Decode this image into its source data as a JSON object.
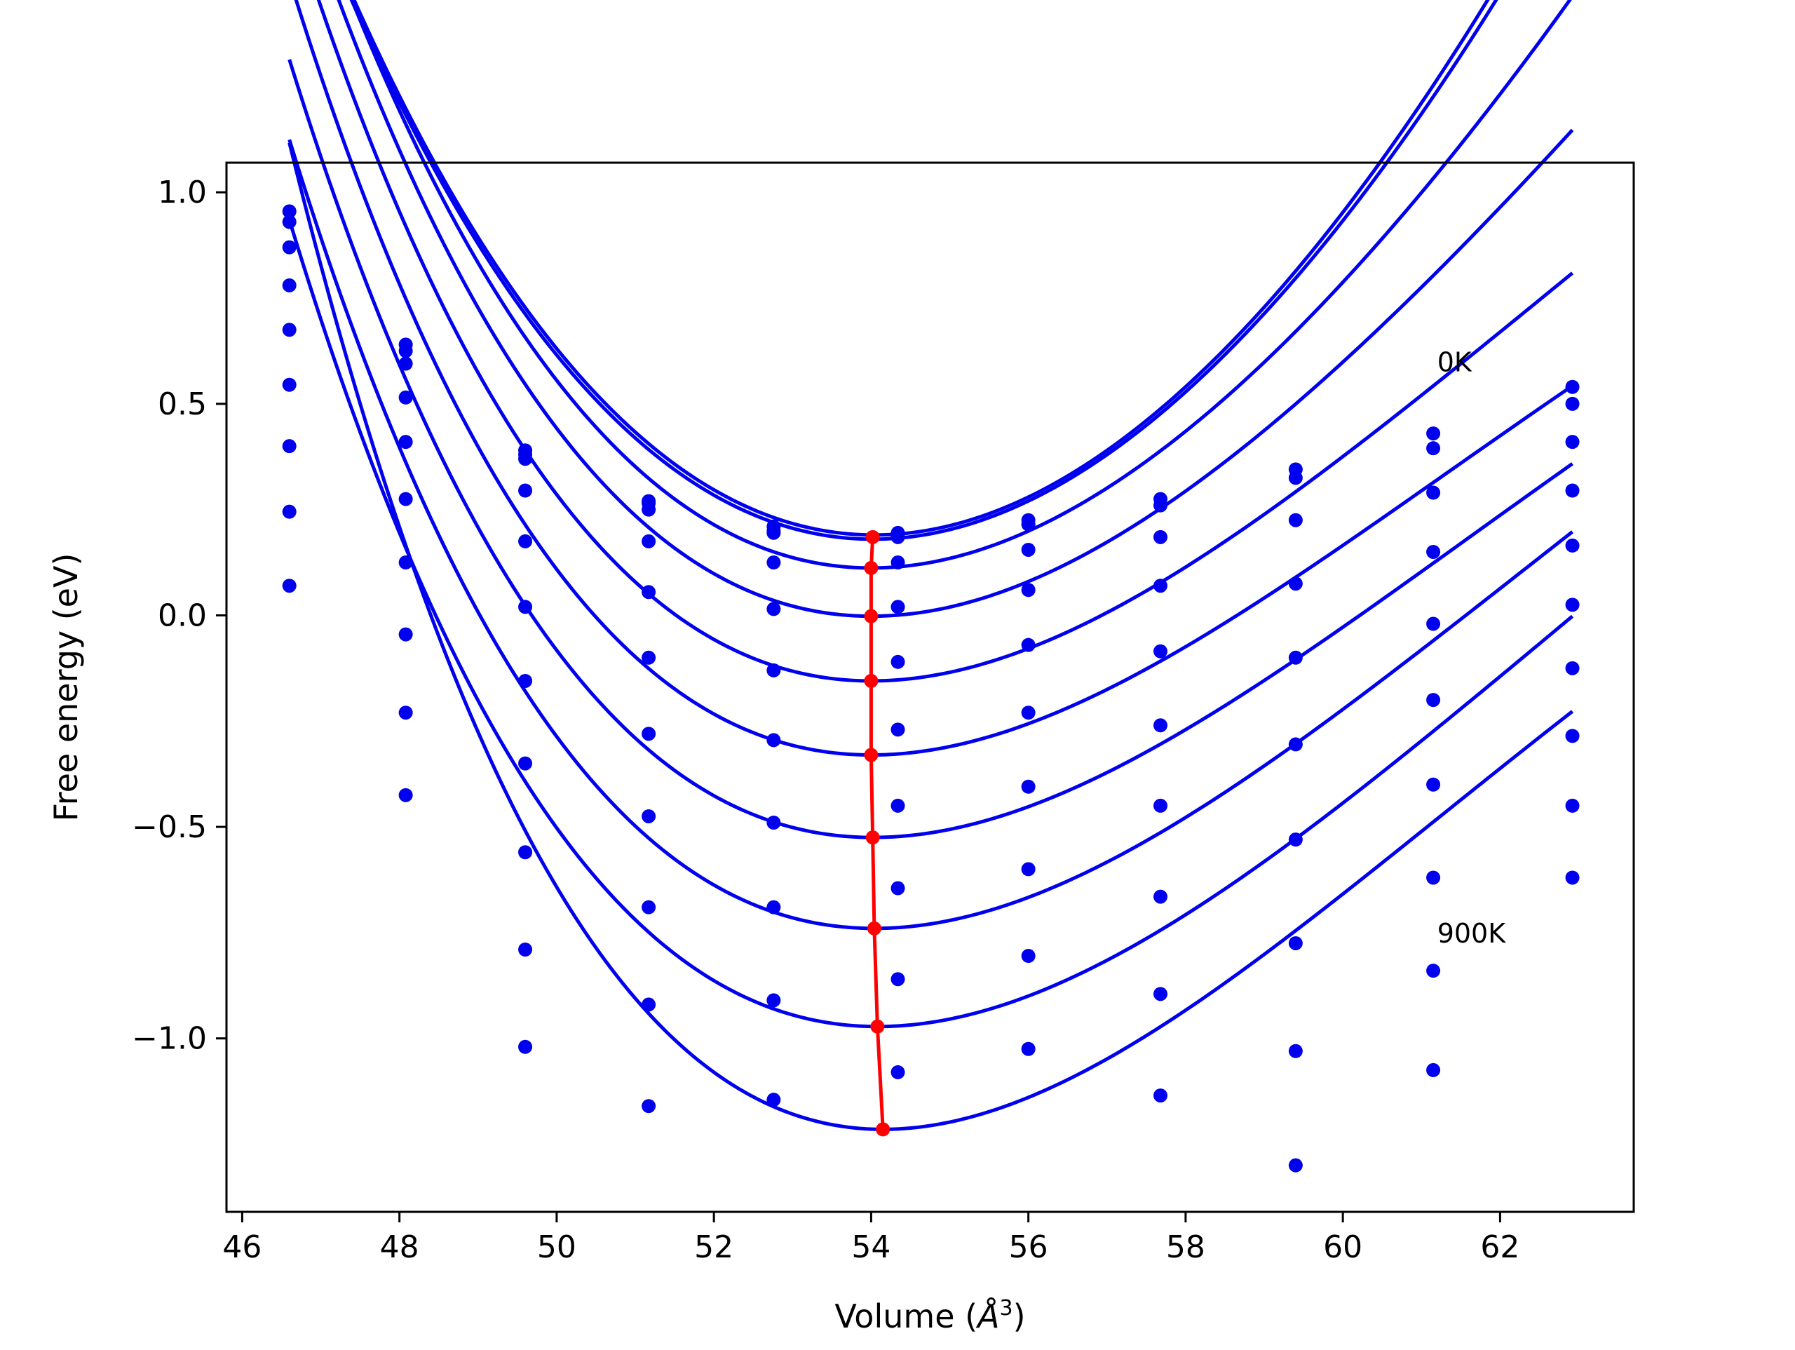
{
  "chart_data": {
    "type": "line",
    "title": "",
    "xlabel": "Volume (",
    "xlabel_symbol": "Å",
    "xlabel_sup": "3",
    "xlabel_close": ")",
    "ylabel": "Free energy (eV)",
    "xlim": [
      45.8,
      63.7
    ],
    "ylim": [
      -1.41,
      1.07
    ],
    "xticks": [
      46,
      48,
      50,
      52,
      54,
      56,
      58,
      60,
      62
    ],
    "xtick_labels": [
      "46",
      "48",
      "50",
      "52",
      "54",
      "56",
      "58",
      "60",
      "62"
    ],
    "yticks": [
      1.0,
      0.5,
      0.0,
      -0.5,
      -1.0
    ],
    "ytick_labels": [
      "1.0",
      "0.5",
      "0.0",
      "−0.5",
      "−1.0"
    ],
    "grid": false,
    "legend": "none",
    "colors": {
      "curves": "#0000ee",
      "points": "#0000ee",
      "minimum_line": "#ff0000",
      "frame": "#000000"
    },
    "annotations": [
      {
        "text": "0K",
        "x": 61.2,
        "y": 0.6
      },
      {
        "text": "900K",
        "x": 61.2,
        "y": -0.75
      }
    ],
    "volumes": [
      46.6,
      48.08,
      49.6,
      51.17,
      52.76,
      54.34,
      56.0,
      57.68,
      59.4,
      61.15,
      62.92
    ],
    "series": [
      {
        "fit": {
          "v0": 54.04,
          "e0": 0.19,
          "a": 0.0244,
          "b": -0.00058,
          "c": 1.48e-05
        },
        "points": [
          0.955,
          0.64,
          0.39,
          0.27,
          0.21,
          0.195,
          0.225,
          0.275,
          0.345,
          0.43,
          0.54
        ]
      },
      {
        "fit": {
          "v0": 54.02,
          "e0": 0.18,
          "a": 0.0242,
          "b": -0.00062,
          "c": 1.57e-05
        },
        "points": [
          0.93,
          0.625,
          0.38,
          0.265,
          0.2,
          0.185,
          0.215,
          0.26,
          0.325,
          0.395,
          0.5
        ]
      },
      {
        "fit": {
          "v0": 54.0,
          "e0": 0.112,
          "a": 0.0236,
          "b": -0.00094,
          "c": 2.22e-05
        },
        "points": [
          0.87,
          0.595,
          0.37,
          0.25,
          0.195,
          0.125,
          0.155,
          0.185,
          0.225,
          0.29,
          0.41
        ]
      },
      {
        "fit": {
          "v0": 54.0,
          "e0": -0.002,
          "a": 0.0227,
          "b": -0.00116,
          "c": 2.63e-05
        },
        "points": [
          0.78,
          0.515,
          0.295,
          0.175,
          0.125,
          0.02,
          0.06,
          0.07,
          0.075,
          0.15,
          0.295
        ]
      },
      {
        "fit": {
          "v0": 54.0,
          "e0": -0.155,
          "a": 0.0217,
          "b": -0.00134,
          "c": 2.98e-05
        },
        "points": [
          0.675,
          0.41,
          0.175,
          0.055,
          0.015,
          -0.11,
          -0.07,
          -0.085,
          -0.1,
          -0.02,
          0.165
        ]
      },
      {
        "fit": {
          "v0": 54.0,
          "e0": -0.33,
          "a": 0.0212,
          "b": -0.00143,
          "c": 3.17e-05
        },
        "points": [
          0.545,
          0.275,
          0.02,
          -0.1,
          -0.13,
          -0.27,
          -0.23,
          -0.26,
          -0.305,
          -0.2,
          0.025
        ]
      },
      {
        "fit": {
          "v0": 54.02,
          "e0": -0.525,
          "a": 0.0212,
          "b": -0.00141,
          "c": 3.16e-05
        },
        "points": [
          0.4,
          0.125,
          -0.155,
          -0.28,
          -0.295,
          -0.45,
          -0.405,
          -0.45,
          -0.53,
          -0.4,
          -0.125
        ]
      },
      {
        "fit": {
          "v0": 54.04,
          "e0": -0.74,
          "a": 0.0217,
          "b": -0.00138,
          "c": 3.1e-05
        },
        "points": [
          0.245,
          -0.045,
          -0.35,
          -0.475,
          -0.49,
          -0.645,
          -0.6,
          -0.665,
          -0.775,
          -0.62,
          -0.285
        ]
      },
      {
        "fit": {
          "v0": 54.08,
          "e0": -0.972,
          "a": 0.0221,
          "b": -0.00137,
          "c": 3.1e-05
        },
        "points": [
          0.07,
          -0.23,
          -0.56,
          -0.69,
          -0.69,
          -0.86,
          -0.805,
          -0.895,
          -1.03,
          -0.84,
          -0.45
        ]
      },
      {
        "fit": {
          "v0": 54.15,
          "e0": -1.215,
          "a": 0.0252,
          "b": -0.00177,
          "c": 4.12e-05
        },
        "points": [
          null,
          -0.425,
          -0.79,
          -0.92,
          -0.91,
          -1.08,
          -1.025,
          -1.135,
          -1.3,
          -1.075,
          -0.62
        ]
      },
      {
        "fit": null,
        "points": [
          null,
          null,
          -1.02,
          -1.16,
          -1.145,
          null,
          null,
          null,
          null,
          null,
          null
        ]
      }
    ],
    "minimum_line": {
      "x": [
        54.02,
        54.0,
        54.0,
        54.0,
        54.0,
        54.02,
        54.04,
        54.08,
        54.15
      ],
      "y": [
        0.185,
        0.112,
        -0.002,
        -0.155,
        -0.33,
        -0.525,
        -0.74,
        -0.972,
        -1.215
      ]
    }
  }
}
